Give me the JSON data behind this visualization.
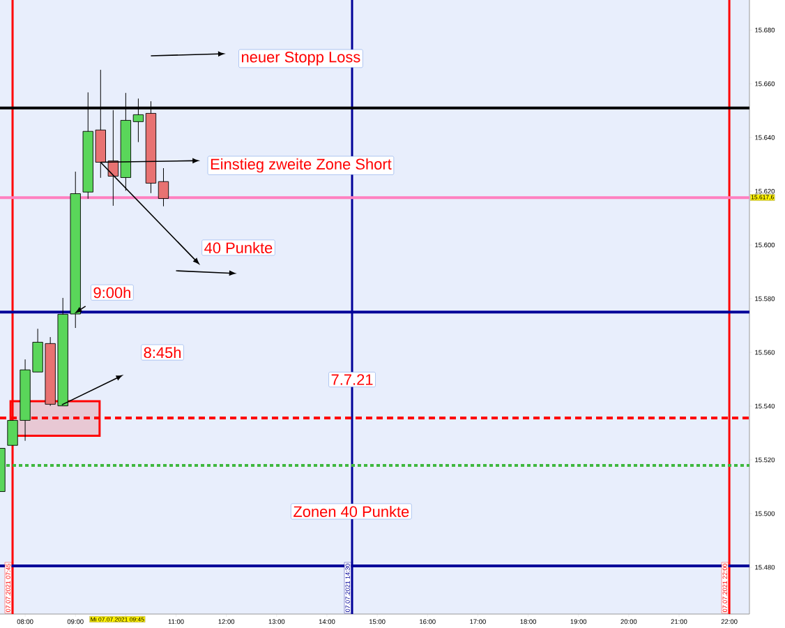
{
  "chart_data": {
    "type": "candlestick",
    "x": [
      "2021-07-07T07:30",
      "2021-07-07T07:45",
      "2021-07-07T08:00",
      "2021-07-07T08:15",
      "2021-07-07T08:30",
      "2021-07-07T08:45",
      "2021-07-07T09:00",
      "2021-07-07T09:15",
      "2021-07-07T09:30",
      "2021-07-07T09:45",
      "2021-07-07T10:00",
      "2021-07-07T10:15",
      "2021-07-07T10:30",
      "2021-07-07T10:45"
    ],
    "ohlc": [
      [
        15.5082,
        15.5243,
        15.5082,
        15.5243
      ],
      [
        15.5254,
        15.5347,
        15.5254,
        15.5347
      ],
      [
        15.5347,
        15.5574,
        15.5271,
        15.5535
      ],
      [
        15.5527,
        15.5688,
        15.5527,
        15.5638
      ],
      [
        15.5633,
        15.5657,
        15.5401,
        15.5407
      ],
      [
        15.5401,
        15.5803,
        15.5401,
        15.5742
      ],
      [
        15.5743,
        15.6273,
        15.5691,
        15.6191
      ],
      [
        15.6197,
        15.6568,
        15.6172,
        15.6423
      ],
      [
        15.6428,
        15.6652,
        15.625,
        15.6308
      ],
      [
        15.6313,
        15.6502,
        15.6146,
        15.6256
      ],
      [
        15.6251,
        15.6566,
        15.6202,
        15.6464
      ],
      [
        15.6459,
        15.6545,
        15.6383,
        15.6485
      ],
      [
        15.649,
        15.6535,
        15.6193,
        15.623
      ],
      [
        15.6236,
        15.6286,
        15.6144,
        15.6173
      ]
    ],
    "colors": [
      "#5ad65a",
      "#5ad65a",
      "#5ad65a",
      "#5ad65a",
      "#e87272",
      "#5ad65a",
      "#5ad65a",
      "#5ad65a",
      "#e87272",
      "#e87272",
      "#5ad65a",
      "#5ad65a",
      "#e87272",
      "#e87272"
    ],
    "xlim": [
      "2021-07-07T07:30",
      "2021-07-07T22:24"
    ],
    "ylim": [
      15.4626,
      15.6912
    ],
    "xticks": [
      {
        "value": "2021-07-07T08:00",
        "label": "08:00"
      },
      {
        "value": "2021-07-07T09:00",
        "label": "09:00"
      },
      {
        "value": "2021-07-07T10:00",
        "label": null
      },
      {
        "value": "2021-07-07T11:00",
        "label": "11:00"
      },
      {
        "value": "2021-07-07T12:00",
        "label": "12:00"
      },
      {
        "value": "2021-07-07T13:00",
        "label": "13:00"
      },
      {
        "value": "2021-07-07T14:00",
        "label": "14:00"
      },
      {
        "value": "2021-07-07T15:00",
        "label": "15:00"
      },
      {
        "value": "2021-07-07T16:00",
        "label": "16:00"
      },
      {
        "value": "2021-07-07T17:00",
        "label": "17:00"
      },
      {
        "value": "2021-07-07T18:00",
        "label": "18:00"
      },
      {
        "value": "2021-07-07T19:00",
        "label": "19:00"
      },
      {
        "value": "2021-07-07T20:00",
        "label": "20:00"
      },
      {
        "value": "2021-07-07T21:00",
        "label": "21:00"
      },
      {
        "value": "2021-07-07T22:00",
        "label": "22:00"
      }
    ],
    "yticks": [
      {
        "value": 15.48,
        "label": "15.480"
      },
      {
        "value": 15.5,
        "label": "15.500"
      },
      {
        "value": 15.52,
        "label": "15.520"
      },
      {
        "value": 15.54,
        "label": "15.540"
      },
      {
        "value": 15.56,
        "label": "15.560"
      },
      {
        "value": 15.58,
        "label": "15.580"
      },
      {
        "value": 15.6,
        "label": "15.600"
      },
      {
        "value": 15.62,
        "label": "15.620"
      },
      {
        "value": 15.64,
        "label": "15.640"
      },
      {
        "value": 15.66,
        "label": "15.660"
      },
      {
        "value": 15.68,
        "label": "15.680"
      }
    ],
    "ref_lines": [
      {
        "axis": "x",
        "value": "2021-07-07T07:45",
        "label": "07.07.2021 07:45",
        "color": "#ff0000"
      },
      {
        "axis": "x",
        "value": "2021-07-07T14:30",
        "label": "07.07.2021 14:30",
        "color": "#000099"
      },
      {
        "axis": "x",
        "value": "2021-07-07T22:00",
        "label": "07.07.2021 22:00",
        "color": "#ff0000"
      },
      {
        "axis": "y",
        "value": 15.651,
        "color": "#000000"
      },
      {
        "axis": "y",
        "value": 15.6176,
        "label": "15.617,6",
        "color": "#ff80c0"
      },
      {
        "axis": "y",
        "value": 15.575,
        "color": "#000099"
      },
      {
        "axis": "y",
        "value": 15.4805,
        "color": "#000099"
      },
      {
        "axis": "y",
        "value": 15.5356,
        "color": "#ff0000",
        "line_style": "dashed"
      },
      {
        "axis": "y",
        "value": 15.5179,
        "color": "#40b840",
        "line_style": "dotted"
      }
    ],
    "annotations": [
      "neuer Stopp Loss",
      {
        "text": "Einstieg zweite Zone Short",
        "x": "2021-07-07T09:30",
        "y": 15.6308
      },
      {
        "text": "40 Punkte",
        "x": "2021-07-07T09:30",
        "y": 15.6308
      },
      "9:00h",
      "8:45h",
      {
        "text": "7.7.21",
        "x": "2021-07-07T14:30",
        "y": 15.5499
      },
      {
        "text": "Zonen 40 Punkte",
        "x": "2021-07-07T14:29",
        "y": 15.5008
      },
      "Mi 07.07.2021 09:45"
    ]
  }
}
